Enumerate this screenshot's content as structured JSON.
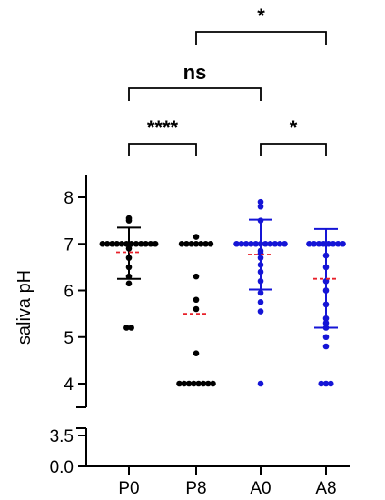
{
  "chart_data": {
    "type": "scatter",
    "subtype": "dot-plot-with-mean-sd",
    "ylabel": "saliva pH",
    "categories": [
      "P0",
      "P8",
      "A0",
      "A8"
    ],
    "y_axis_upper": {
      "ylim": [
        3.5,
        8.3
      ],
      "ticks": [
        "4",
        "5",
        "6",
        "7",
        "8"
      ]
    },
    "y_axis_lower": {
      "ylim": [
        0,
        3.5
      ],
      "ticks": [
        "0.0",
        "3.5"
      ]
    },
    "axis_break": true,
    "grid": false,
    "legend": "none",
    "colors": {
      "P0": "#000000",
      "P8": "#000000",
      "A0": "#1515d6",
      "A8": "#1515d6",
      "mean": "#e8202a",
      "axis": "#000000"
    },
    "series": [
      {
        "category": "P0",
        "values": [
          7.55,
          7.5,
          7.0,
          7.0,
          7.0,
          7.0,
          7.0,
          7.0,
          7.0,
          7.0,
          7.0,
          7.0,
          7.0,
          7.0,
          6.9,
          6.7,
          6.5,
          6.3,
          6.15,
          5.2,
          5.2
        ],
        "mean": 6.82,
        "sd_upper": 7.35,
        "sd_lower": 6.25
      },
      {
        "category": "P8",
        "values": [
          7.0,
          7.0,
          7.0,
          7.0,
          7.0,
          7.0,
          7.0,
          7.15,
          6.3,
          5.8,
          5.6,
          4.65,
          4.0,
          4.0,
          4.0,
          4.0,
          4.0,
          4.0,
          4.0,
          4.0
        ],
        "mean": 5.5
      },
      {
        "category": "A0",
        "values": [
          7.9,
          7.8,
          7.5,
          7.0,
          7.0,
          7.0,
          7.0,
          7.0,
          7.0,
          7.0,
          7.0,
          7.0,
          7.0,
          7.0,
          6.85,
          6.8,
          6.7,
          6.55,
          6.4,
          6.2,
          5.95,
          5.75,
          5.55,
          4.0
        ],
        "mean": 6.77,
        "sd_upper": 7.52,
        "sd_lower": 6.02
      },
      {
        "category": "A8",
        "values": [
          7.0,
          7.0,
          7.0,
          7.0,
          7.0,
          7.0,
          7.0,
          7.0,
          6.75,
          6.5,
          6.2,
          6.0,
          5.7,
          5.4,
          5.3,
          5.2,
          5.0,
          4.8,
          4.0,
          4.0,
          4.0
        ],
        "mean": 6.25,
        "sd_upper": 7.32,
        "sd_lower": 5.2
      }
    ],
    "comparisons": [
      {
        "from": "P8",
        "to": "A8",
        "label": "*",
        "level": 3
      },
      {
        "from": "P0",
        "to": "A0",
        "label": "ns",
        "level": 2
      },
      {
        "from": "P0",
        "to": "P8",
        "label": "****",
        "level": 1
      },
      {
        "from": "A0",
        "to": "A8",
        "label": "*",
        "level": 1
      }
    ]
  }
}
